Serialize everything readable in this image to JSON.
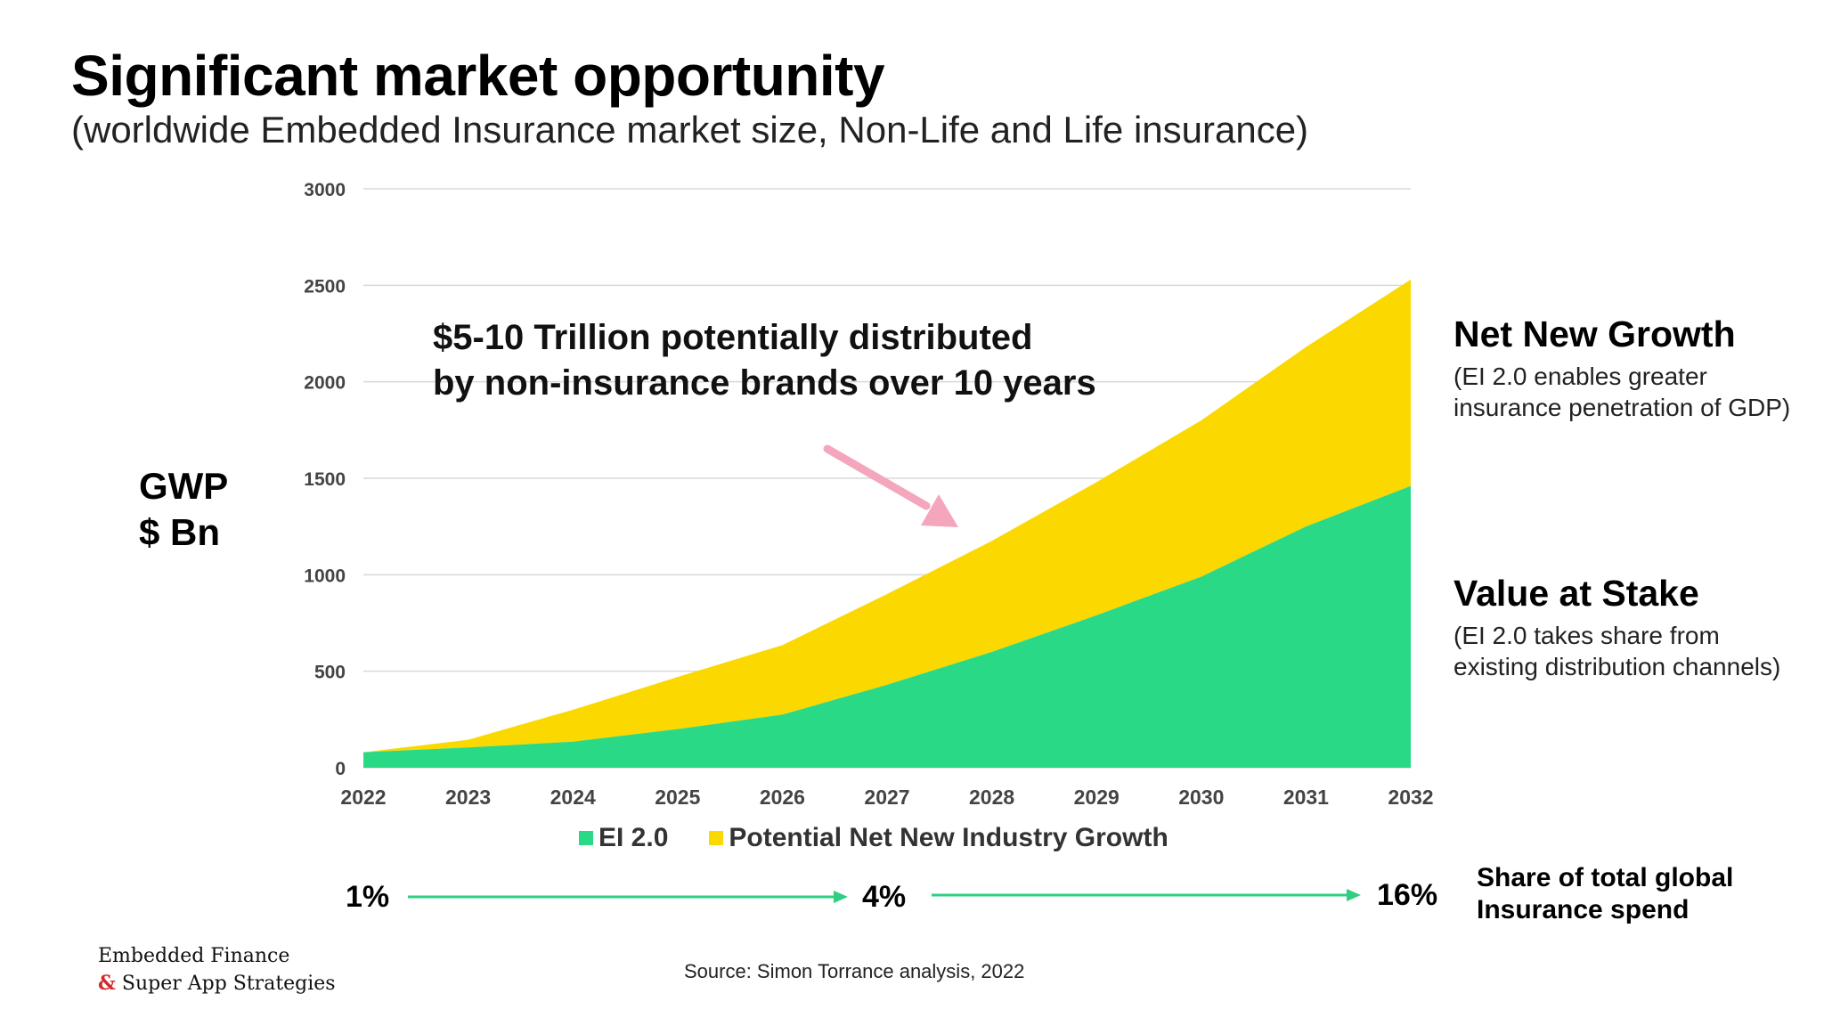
{
  "header": {
    "title": "Significant market opportunity",
    "subtitle": "(worldwide Embedded Insurance market size, Non-Life and Life insurance)"
  },
  "yaxis_label": {
    "line1": "GWP",
    "line2": "$ Bn"
  },
  "callout": {
    "line1": "$5-10 Trillion potentially distributed",
    "line2": "by non-insurance brands over 10 years"
  },
  "right_labels": {
    "net_new_growth": {
      "title": "Net New Growth",
      "desc": "(EI 2.0 enables greater insurance penetration of GDP)"
    },
    "value_at_stake": {
      "title": "Value at Stake",
      "desc": "(EI 2.0 takes share from existing distribution channels)"
    }
  },
  "legend": {
    "ei": "EI 2.0",
    "growth": "Potential Net New Industry Growth"
  },
  "share": {
    "start": "1%",
    "mid": "4%",
    "end": "16%",
    "label_line1": "Share of total global",
    "label_line2": "Insurance spend"
  },
  "source": "Source: Simon Torrance analysis, 2022",
  "brand": {
    "line1": "Embedded Finance",
    "amp": "&",
    "line2": " Super App Strategies"
  },
  "colors": {
    "ei": "#2ad986",
    "growth": "#fad800",
    "arrow": "#f4a6bd",
    "share_arrow": "#2ecf80",
    "grid": "#d9d9d9"
  },
  "chart_data": {
    "type": "area",
    "stacked": true,
    "categories": [
      "2022",
      "2023",
      "2024",
      "2025",
      "2026",
      "2027",
      "2028",
      "2029",
      "2030",
      "2031",
      "2032"
    ],
    "series": [
      {
        "name": "EI 2.0",
        "values": [
          80,
          105,
          135,
          200,
          275,
          430,
          600,
          790,
          990,
          1250,
          1460
        ]
      },
      {
        "name": "Potential Net New Industry Growth",
        "values": [
          0,
          40,
          165,
          270,
          360,
          470,
          575,
          690,
          810,
          930,
          1070
        ]
      }
    ],
    "ylim": [
      0,
      3000
    ],
    "yticks": [
      0,
      500,
      1000,
      1500,
      2000,
      2500,
      3000
    ],
    "ylabel": "GWP $ Bn",
    "grid": true,
    "legend_position": "bottom"
  }
}
